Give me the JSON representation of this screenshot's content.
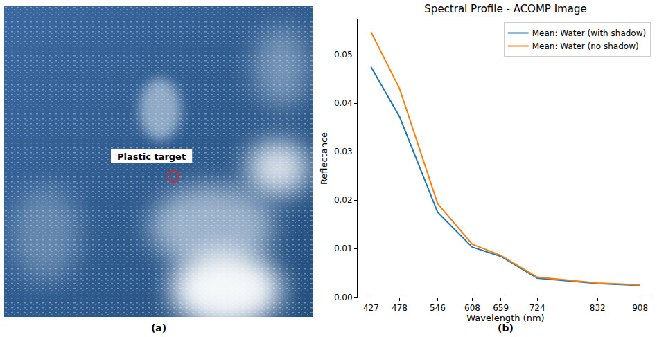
{
  "image": {
    "annotation": "Plastic target",
    "panel_label": "(a)"
  },
  "chart_data": {
    "type": "line",
    "panel_label": "(b)",
    "title": "Spectral Profile - ACOMP Image",
    "x_label": "Wavelength (nm)",
    "y_label": "Reflectance",
    "x": [
      427,
      478,
      546,
      608,
      659,
      724,
      832,
      908
    ],
    "series": [
      {
        "name": "Mean: Water (with shadow)",
        "color": "#1f77b4",
        "values": [
          0.0475,
          0.0372,
          0.0175,
          0.0103,
          0.0084,
          0.0039,
          0.0028,
          0.0024
        ]
      },
      {
        "name": "Mean: Water (no shadow)",
        "color": "#ff7f0e",
        "values": [
          0.0547,
          0.043,
          0.0193,
          0.0109,
          0.0086,
          0.0041,
          0.0029,
          0.0025
        ]
      }
    ],
    "xlim": [
      403,
      932
    ],
    "xticks": [
      427,
      478,
      546,
      608,
      659,
      724,
      832,
      908
    ],
    "ylim": [
      -0.0001,
      0.0573
    ],
    "yticks": [
      {
        "value": 0,
        "label": "0.00"
      },
      0.01,
      0.02,
      0.03,
      0.04,
      0.05
    ],
    "grid": false,
    "legend": "upper right"
  }
}
